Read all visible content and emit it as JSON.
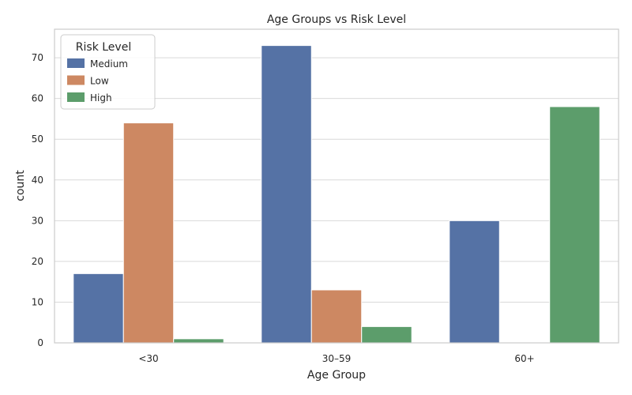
{
  "chart_data": {
    "type": "bar",
    "title": "Age Groups vs Risk Level",
    "xlabel": "Age Group",
    "ylabel": "count",
    "categories": [
      "<30",
      "30–59",
      "60+"
    ],
    "series": [
      {
        "name": "Medium",
        "color": "#5572a5",
        "values": [
          17,
          73,
          30
        ]
      },
      {
        "name": "Low",
        "color": "#cd8862",
        "values": [
          54,
          13,
          0
        ]
      },
      {
        "name": "High",
        "color": "#5c9d6b",
        "values": [
          1,
          4,
          58
        ]
      }
    ],
    "ylim": [
      0,
      77
    ],
    "yticks": [
      0,
      10,
      20,
      30,
      40,
      50,
      60,
      70
    ],
    "grid": true,
    "legend": {
      "title": "Risk Level",
      "placement": "top-left"
    }
  }
}
